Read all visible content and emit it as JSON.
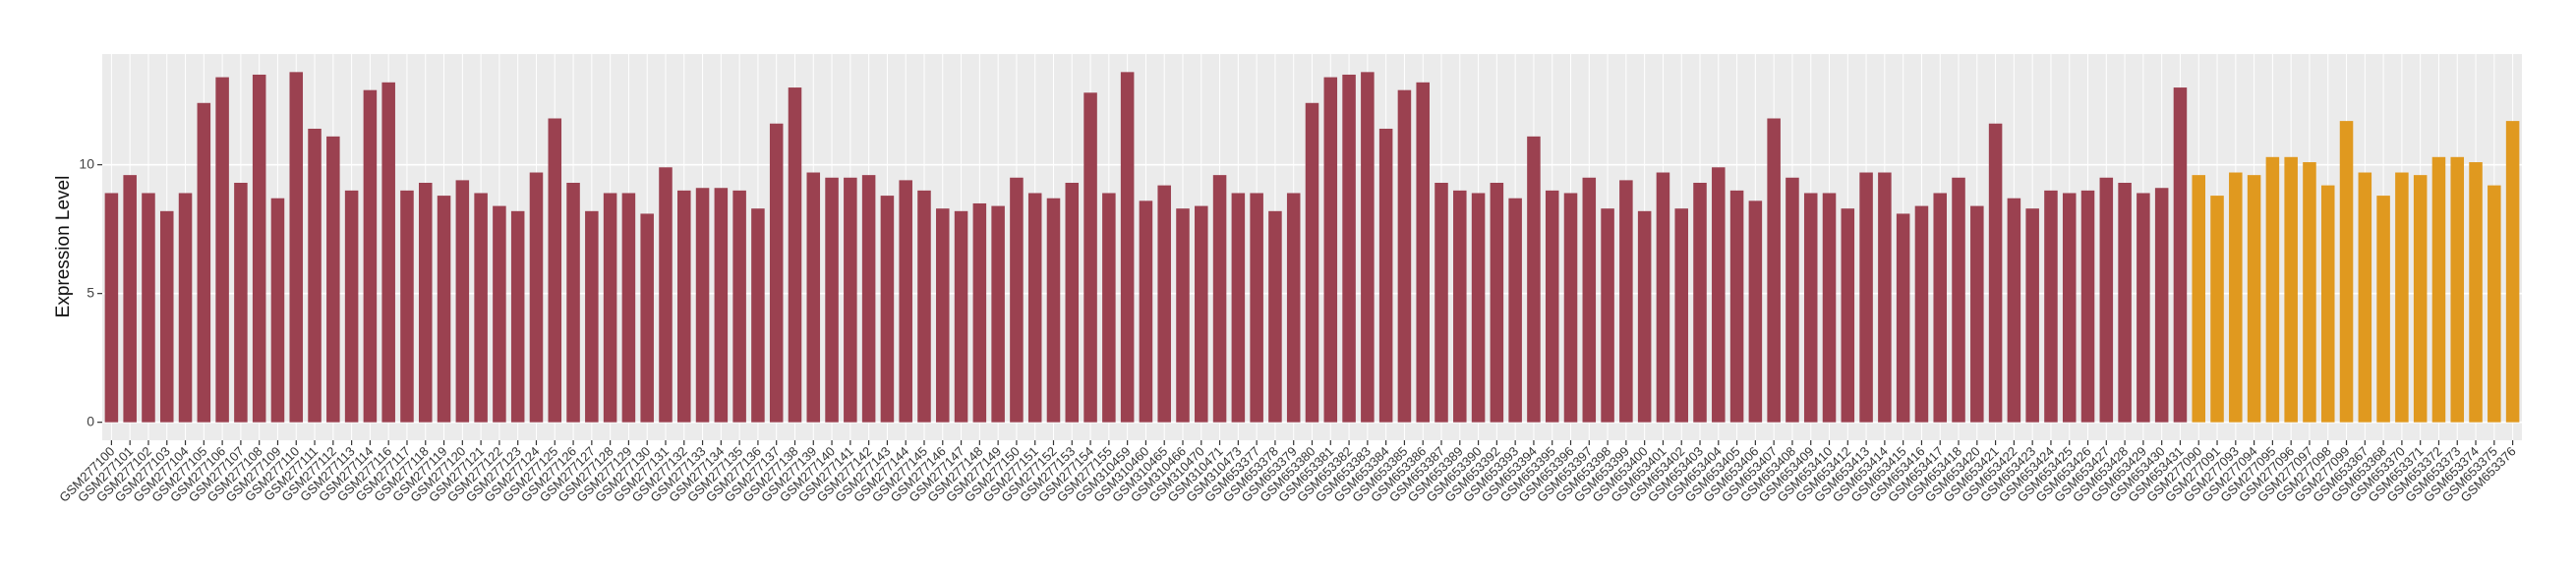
{
  "chart_data": {
    "type": "bar",
    "y_label": "Expression Level",
    "categories": [
      "GSM277100",
      "GSM277101",
      "GSM277102",
      "GSM277103",
      "GSM277104",
      "GSM277105",
      "GSM277106",
      "GSM277107",
      "GSM277108",
      "GSM277109",
      "GSM277110",
      "GSM277111",
      "GSM277112",
      "GSM277113",
      "GSM277114",
      "GSM277116",
      "GSM277117",
      "GSM277118",
      "GSM277119",
      "GSM277120",
      "GSM277121",
      "GSM277122",
      "GSM277123",
      "GSM277124",
      "GSM277125",
      "GSM277126",
      "GSM277127",
      "GSM277128",
      "GSM277129",
      "GSM277130",
      "GSM277131",
      "GSM277132",
      "GSM277133",
      "GSM277134",
      "GSM277135",
      "GSM277136",
      "GSM277137",
      "GSM277138",
      "GSM277139",
      "GSM277140",
      "GSM277141",
      "GSM277142",
      "GSM277143",
      "GSM277144",
      "GSM277145",
      "GSM277146",
      "GSM277147",
      "GSM277148",
      "GSM277149",
      "GSM277150",
      "GSM277151",
      "GSM277152",
      "GSM277153",
      "GSM277154",
      "GSM277155",
      "GSM310459",
      "GSM310460",
      "GSM310465",
      "GSM310466",
      "GSM310470",
      "GSM310471",
      "GSM310473",
      "GSM653377",
      "GSM653378",
      "GSM653379",
      "GSM653380",
      "GSM653381",
      "GSM653382",
      "GSM653383",
      "GSM653384",
      "GSM653385",
      "GSM653386",
      "GSM653387",
      "GSM653389",
      "GSM653390",
      "GSM653392",
      "GSM653393",
      "GSM653394",
      "GSM653395",
      "GSM653396",
      "GSM653397",
      "GSM653398",
      "GSM653399",
      "GSM653400",
      "GSM653401",
      "GSM653402",
      "GSM653403",
      "GSM653404",
      "GSM653405",
      "GSM653406",
      "GSM653407",
      "GSM653408",
      "GSM653409",
      "GSM653410",
      "GSM653412",
      "GSM653413",
      "GSM653414",
      "GSM653415",
      "GSM653416",
      "GSM653417",
      "GSM653418",
      "GSM653420",
      "GSM653421",
      "GSM653422",
      "GSM653423",
      "GSM653424",
      "GSM653425",
      "GSM653426",
      "GSM653427",
      "GSM653428",
      "GSM653429",
      "GSM653430",
      "GSM653431",
      "GSM277090",
      "GSM277091",
      "GSM277093",
      "GSM277094",
      "GSM277095",
      "GSM277096",
      "GSM277097",
      "GSM277098",
      "GSM277099",
      "GSM653367",
      "GSM653368",
      "GSM653370",
      "GSM653371",
      "GSM653372",
      "GSM653373",
      "GSM653374",
      "GSM653375",
      "GSM653376"
    ],
    "values": [
      8.9,
      9.6,
      8.9,
      8.2,
      8.9,
      12.4,
      13.4,
      9.3,
      13.5,
      8.7,
      13.6,
      11.4,
      11.1,
      9.0,
      12.9,
      13.2,
      9.0,
      9.3,
      8.8,
      9.4,
      8.9,
      8.4,
      8.2,
      9.7,
      11.8,
      9.3,
      8.2,
      8.9,
      8.9,
      8.1,
      9.9,
      9.0,
      9.1,
      9.1,
      9.0,
      8.3,
      11.6,
      13.0,
      9.7,
      9.5,
      9.5,
      9.6,
      8.8,
      9.4,
      9.0,
      8.3,
      8.2,
      8.5,
      8.4,
      9.5,
      8.9,
      8.7,
      9.3,
      12.8,
      8.9,
      13.6,
      8.6,
      9.2,
      8.3,
      8.4,
      9.6,
      8.9,
      8.9,
      8.2,
      8.9,
      12.4,
      13.4,
      13.5,
      13.6,
      11.4,
      12.9,
      13.2,
      9.3,
      9.0,
      8.9,
      9.3,
      8.7,
      11.1,
      9.0,
      8.9,
      9.5,
      8.3,
      9.4,
      8.2,
      9.7,
      8.3,
      9.3,
      9.9,
      9.0,
      8.6,
      11.8,
      9.5,
      8.9,
      8.9,
      8.3,
      9.7,
      9.7,
      8.1,
      8.4,
      8.9,
      9.5,
      8.4,
      11.6,
      8.7,
      8.3,
      9.0,
      8.9,
      9.0,
      9.5,
      9.3,
      8.9,
      9.1,
      13.0,
      9.6,
      8.8,
      9.7,
      9.6,
      10.3,
      10.3,
      10.1,
      9.2,
      11.7,
      9.7,
      8.8,
      9.7,
      9.6,
      10.3,
      10.3,
      10.1,
      9.2,
      11.7
    ],
    "colors": [
      "#9b4150",
      "#9b4150",
      "#9b4150",
      "#9b4150",
      "#9b4150",
      "#9b4150",
      "#9b4150",
      "#9b4150",
      "#9b4150",
      "#9b4150",
      "#9b4150",
      "#9b4150",
      "#9b4150",
      "#9b4150",
      "#9b4150",
      "#9b4150",
      "#9b4150",
      "#9b4150",
      "#9b4150",
      "#9b4150",
      "#9b4150",
      "#9b4150",
      "#9b4150",
      "#9b4150",
      "#9b4150",
      "#9b4150",
      "#9b4150",
      "#9b4150",
      "#9b4150",
      "#9b4150",
      "#9b4150",
      "#9b4150",
      "#9b4150",
      "#9b4150",
      "#9b4150",
      "#9b4150",
      "#9b4150",
      "#9b4150",
      "#9b4150",
      "#9b4150",
      "#9b4150",
      "#9b4150",
      "#9b4150",
      "#9b4150",
      "#9b4150",
      "#9b4150",
      "#9b4150",
      "#9b4150",
      "#9b4150",
      "#9b4150",
      "#9b4150",
      "#9b4150",
      "#9b4150",
      "#9b4150",
      "#9b4150",
      "#9b4150",
      "#9b4150",
      "#9b4150",
      "#9b4150",
      "#9b4150",
      "#9b4150",
      "#9b4150",
      "#9b4150",
      "#9b4150",
      "#9b4150",
      "#9b4150",
      "#9b4150",
      "#9b4150",
      "#9b4150",
      "#9b4150",
      "#9b4150",
      "#9b4150",
      "#9b4150",
      "#9b4150",
      "#9b4150",
      "#9b4150",
      "#9b4150",
      "#9b4150",
      "#9b4150",
      "#9b4150",
      "#9b4150",
      "#9b4150",
      "#9b4150",
      "#9b4150",
      "#9b4150",
      "#9b4150",
      "#9b4150",
      "#9b4150",
      "#9b4150",
      "#9b4150",
      "#9b4150",
      "#9b4150",
      "#9b4150",
      "#9b4150",
      "#9b4150",
      "#9b4150",
      "#9b4150",
      "#9b4150",
      "#9b4150",
      "#9b4150",
      "#9b4150",
      "#9b4150",
      "#9b4150",
      "#9b4150",
      "#9b4150",
      "#9b4150",
      "#9b4150",
      "#9b4150",
      "#9b4150",
      "#9b4150",
      "#9b4150",
      "#9b4150",
      "#9b4150",
      "#e0991f",
      "#e0991f",
      "#e0991f",
      "#e0991f",
      "#e0991f",
      "#e0991f",
      "#e0991f",
      "#e0991f",
      "#e0991f",
      "#e0991f",
      "#e0991f",
      "#e0991f",
      "#e0991f",
      "#e0991f",
      "#e0991f",
      "#e0991f",
      "#e0991f",
      "#e0991f"
    ],
    "ylim": [
      -0.7,
      14.3
    ],
    "yticks": [
      0,
      5,
      10
    ],
    "grid": true
  }
}
